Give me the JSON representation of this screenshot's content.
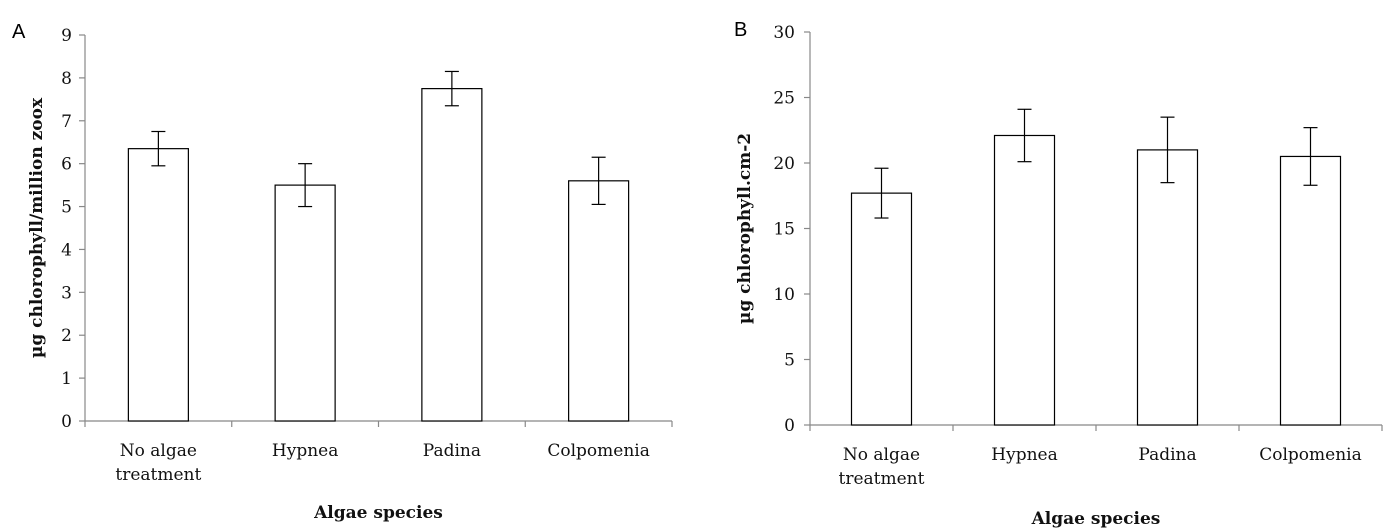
{
  "chart_data": [
    {
      "panel_label": "A",
      "type": "bar",
      "categories": [
        "No algae treatment",
        "Hypnea",
        "Padina",
        "Colpomenia"
      ],
      "category_lines": [
        [
          "No algae",
          "treatment"
        ],
        [
          "Hypnea"
        ],
        [
          "Padina"
        ],
        [
          "Colpomenia"
        ]
      ],
      "values": [
        6.35,
        5.5,
        7.75,
        5.6
      ],
      "errors": [
        0.4,
        0.5,
        0.4,
        0.55
      ],
      "xlabel": "Algae species",
      "ylabel": "µg chlorophyll/million zoox",
      "ylim": [
        0,
        9
      ],
      "yticks": [
        "0",
        "1",
        "2",
        "3",
        "4",
        "5",
        "6",
        "7",
        "8",
        "9"
      ],
      "grid": false
    },
    {
      "panel_label": "B",
      "type": "bar",
      "categories": [
        "No algae treatment",
        "Hypnea",
        "Padina",
        "Colpomenia"
      ],
      "category_lines": [
        [
          "No algae",
          "treatment"
        ],
        [
          "Hypnea"
        ],
        [
          "Padina"
        ],
        [
          "Colpomenia"
        ]
      ],
      "values": [
        17.7,
        22.1,
        21.0,
        20.5
      ],
      "errors": [
        1.9,
        2.0,
        2.5,
        2.2
      ],
      "xlabel": "Algae species",
      "ylabel": "µg chlorophyll.cm-2",
      "ylim": [
        0,
        30
      ],
      "yticks": [
        "0",
        "5",
        "10",
        "15",
        "20",
        "25",
        "30"
      ],
      "grid": false
    }
  ]
}
